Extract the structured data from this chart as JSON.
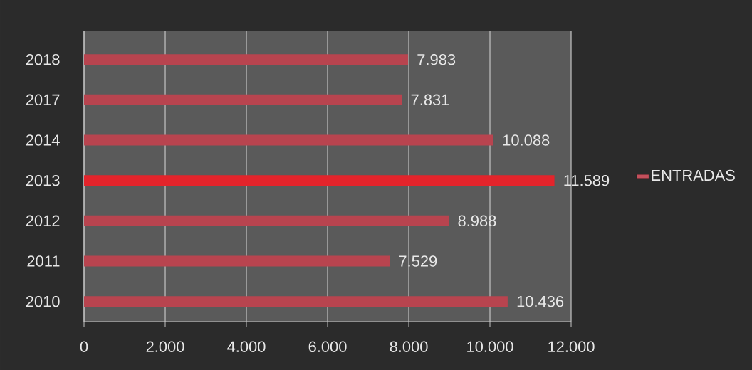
{
  "chart_data": {
    "type": "bar",
    "orientation": "horizontal",
    "categories": [
      "2018",
      "2017",
      "2014",
      "2013",
      "2012",
      "2011",
      "2010"
    ],
    "series": [
      {
        "name": "ENTRADAS",
        "color": "#c4505c",
        "colors": [
          "#b8444f",
          "#b8444f",
          "#b8444f",
          "#e3242b",
          "#b8444f",
          "#b8444f",
          "#b8444f"
        ],
        "values": [
          7983,
          7831,
          10088,
          11589,
          8988,
          7529,
          10436
        ],
        "value_labels": [
          "7.983",
          "7.831",
          "10.088",
          "11.589",
          "8.988",
          "7.529",
          "10.436"
        ]
      }
    ],
    "xlim": [
      0,
      12000
    ],
    "xticks": [
      0,
      {
        "value": 2000,
        "label": "2.000"
      },
      {
        "value": 4000,
        "label": "4.000"
      },
      {
        "value": 6000,
        "label": "6.000"
      },
      {
        "value": 8000,
        "label": "8.000"
      },
      {
        "value": 10000,
        "label": "10.000"
      },
      {
        "value": 12000,
        "label": "12.000"
      }
    ],
    "grid": "x",
    "legend": "right"
  }
}
